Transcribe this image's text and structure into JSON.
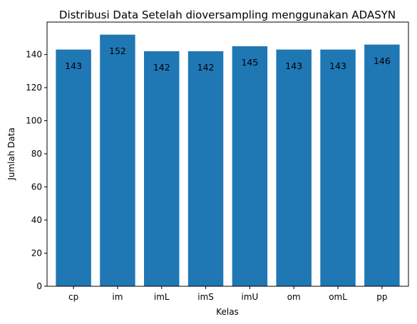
{
  "chart_data": {
    "type": "bar",
    "title": "Distribusi Data Setelah dioversampling menggunakan ADASYN",
    "xlabel": "Kelas",
    "ylabel": "Jumlah Data",
    "categories": [
      "cp",
      "im",
      "imL",
      "imS",
      "imU",
      "om",
      "omL",
      "pp"
    ],
    "values": [
      143,
      152,
      142,
      142,
      145,
      143,
      143,
      146
    ],
    "ylim": [
      0,
      159.6
    ],
    "yticks": [
      0,
      20,
      40,
      60,
      80,
      100,
      120,
      140
    ],
    "bar_color": "#1f77b4",
    "grid": false,
    "legend": "none"
  }
}
